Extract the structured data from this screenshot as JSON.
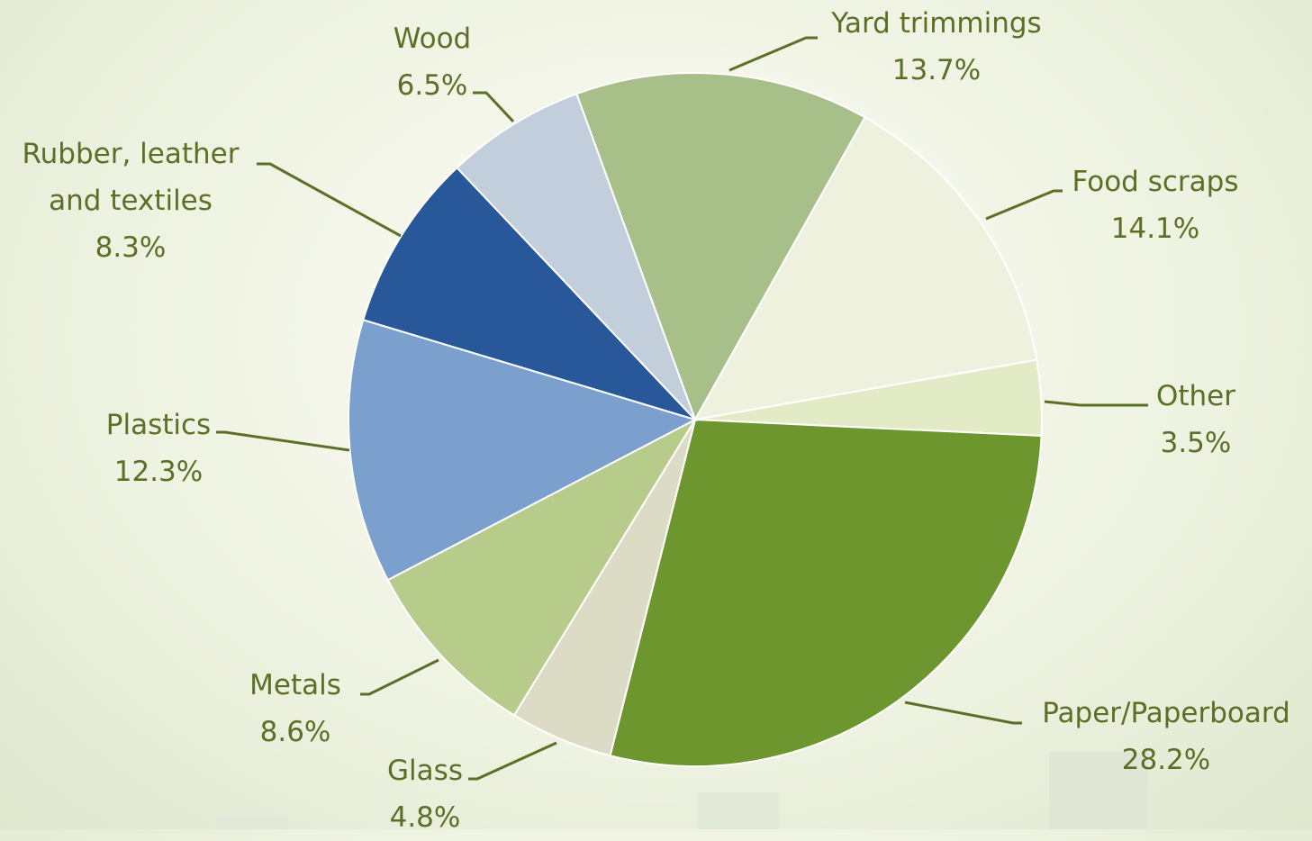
{
  "chart_data": {
    "type": "pie",
    "categories": [
      "Yard trimmings",
      "Food scraps",
      "Other",
      "Paper/Paperboard",
      "Glass",
      "Metals",
      "Plastics",
      "Rubber, leather and textiles",
      "Wood"
    ],
    "values": [
      13.7,
      14.1,
      3.5,
      28.2,
      4.8,
      8.6,
      12.3,
      8.3,
      6.5
    ],
    "value_labels": [
      "13.7%",
      "14.1%",
      "3.5%",
      "28.2%",
      "4.8%",
      "8.6%",
      "12.3%",
      "8.3%",
      "6.5%"
    ],
    "colors": [
      "#a7bf89",
      "#eef1dd",
      "#e3ebc6",
      "#6e962e",
      "#dcdcc6",
      "#b7cb8b",
      "#7ba0cd",
      "#28589a",
      "#c3cedc"
    ]
  }
}
